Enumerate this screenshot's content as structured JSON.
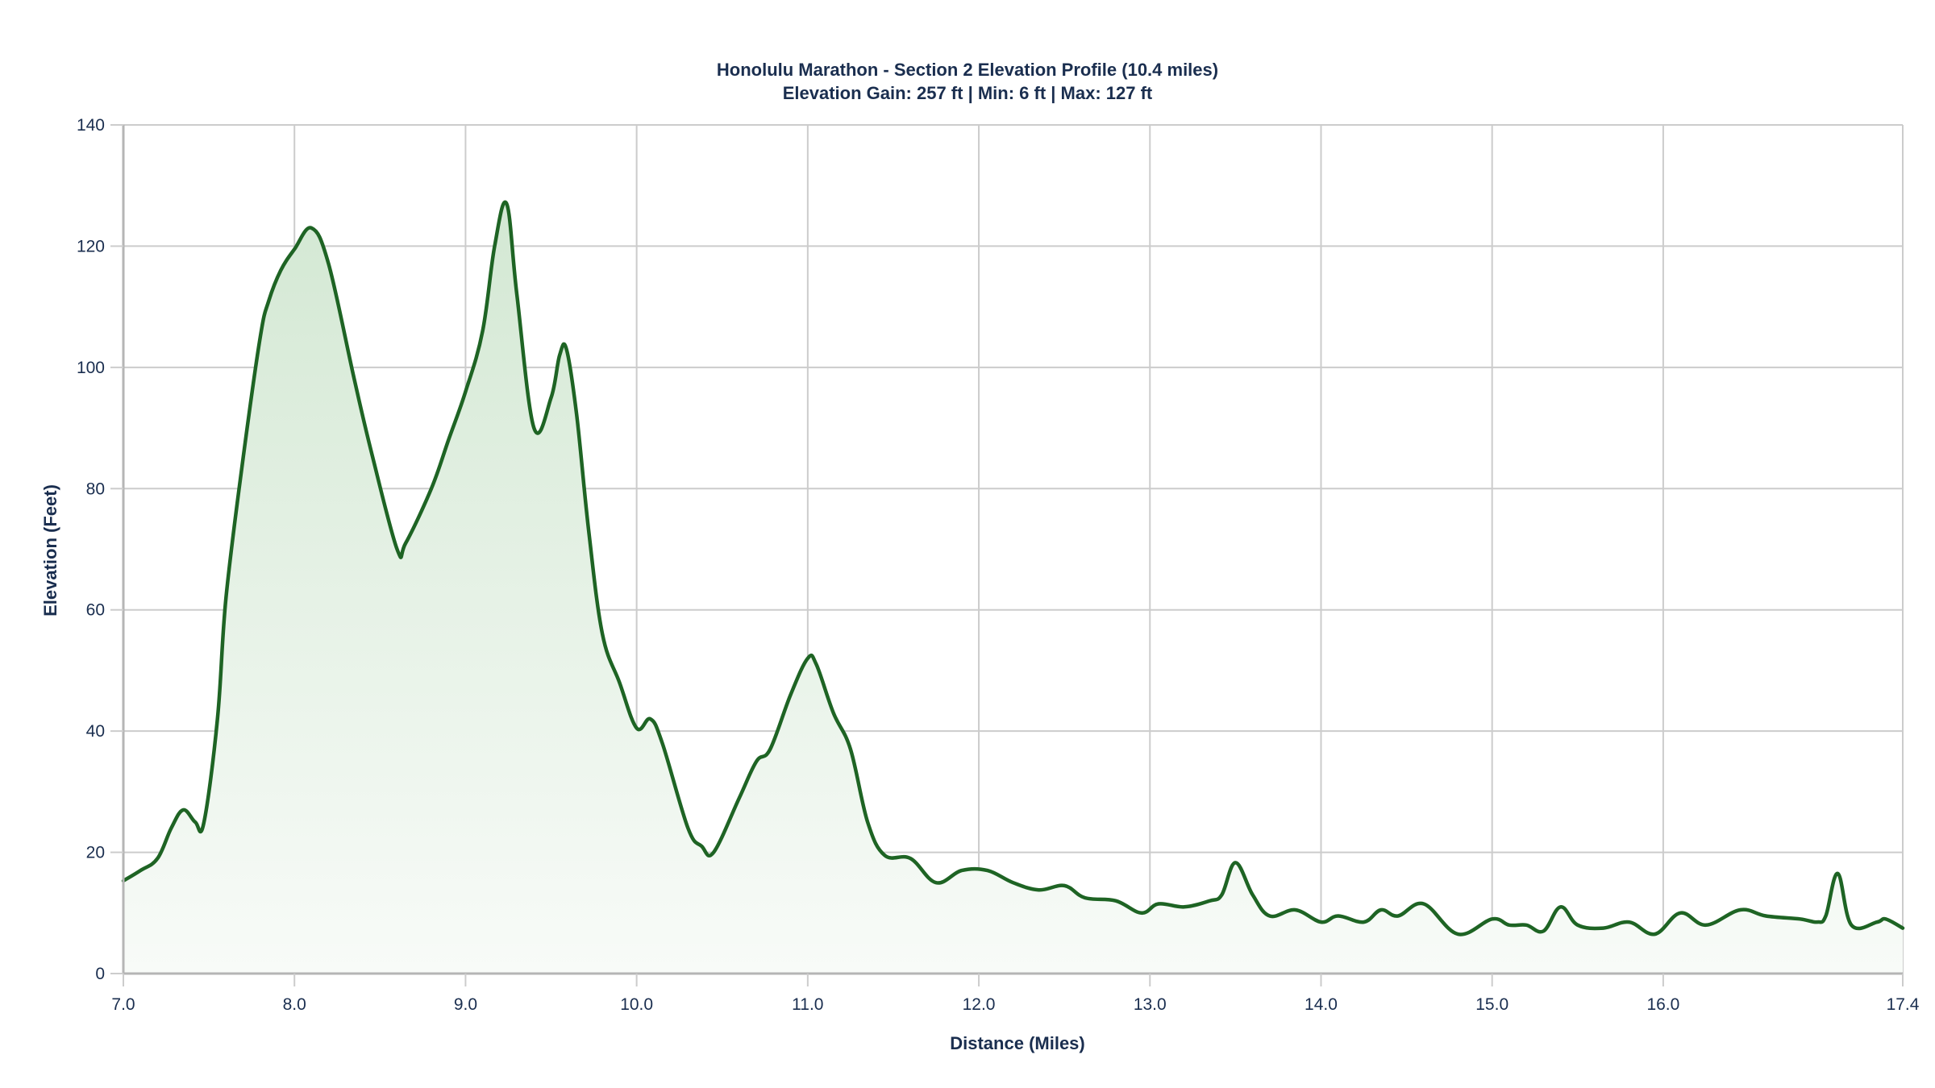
{
  "chart": {
    "title": "Honolulu Marathon - Section 2 Elevation Profile (10.4 miles)",
    "subtitle": "Elevation Gain: 257 ft | Min: 6 ft | Max: 127 ft"
  },
  "colors": {
    "line": "#1e6424",
    "fill_top": "#d3e8d3",
    "fill_bottom": "#f8fbf8",
    "grid": "#cccccc",
    "axis": "#b5b5b5",
    "text": "#1a2e4f"
  },
  "chart_data": {
    "type": "area",
    "title": "Honolulu Marathon - Section 2 Elevation Profile (10.4 miles)",
    "subtitle": "Elevation Gain: 257 ft | Min: 6 ft | Max: 127 ft",
    "xlabel": "Distance (Miles)",
    "ylabel": "Elevation (Feet)",
    "xlim": [
      7.0,
      17.4
    ],
    "ylim": [
      0,
      140
    ],
    "x_ticks": [
      "7.0",
      "8.0",
      "9.0",
      "10.0",
      "11.0",
      "12.0",
      "13.0",
      "14.0",
      "15.0",
      "16.0",
      "17.4"
    ],
    "x_tick_values": [
      7.0,
      8.0,
      9.0,
      10.0,
      11.0,
      12.0,
      13.0,
      14.0,
      15.0,
      16.0,
      17.4
    ],
    "y_ticks": [
      "0",
      "20",
      "40",
      "60",
      "80",
      "100",
      "120",
      "140"
    ],
    "y_tick_values": [
      0,
      20,
      40,
      60,
      80,
      100,
      120,
      140
    ],
    "grid": true,
    "legend": null,
    "x": [
      7.0,
      7.1,
      7.2,
      7.28,
      7.35,
      7.42,
      7.47,
      7.55,
      7.6,
      7.7,
      7.8,
      7.85,
      7.92,
      8.0,
      8.1,
      8.2,
      8.35,
      8.45,
      8.6,
      8.65,
      8.8,
      8.9,
      9.0,
      9.1,
      9.17,
      9.24,
      9.3,
      9.4,
      9.5,
      9.55,
      9.59,
      9.65,
      9.72,
      9.8,
      9.9,
      10.0,
      10.08,
      10.15,
      10.3,
      10.38,
      10.45,
      10.6,
      10.7,
      10.78,
      10.9,
      11.0,
      11.05,
      11.15,
      11.25,
      11.35,
      11.45,
      11.6,
      11.75,
      11.9,
      12.05,
      12.2,
      12.35,
      12.5,
      12.62,
      12.8,
      12.95,
      13.05,
      13.2,
      13.35,
      13.42,
      13.5,
      13.6,
      13.7,
      13.85,
      14.0,
      14.1,
      14.25,
      14.35,
      14.45,
      14.6,
      14.8,
      15.0,
      15.1,
      15.2,
      15.3,
      15.4,
      15.5,
      15.65,
      15.8,
      15.95,
      16.1,
      16.25,
      16.45,
      16.6,
      16.8,
      16.9,
      16.95,
      17.02,
      17.1,
      17.25,
      17.3,
      17.4
    ],
    "values": [
      15.3,
      17,
      19,
      24,
      27,
      25,
      24.8,
      42,
      62,
      85,
      105,
      111,
      116,
      119.5,
      123,
      117,
      98,
      86,
      70,
      71,
      80,
      88,
      96,
      106,
      120,
      127,
      112,
      90,
      95,
      102,
      103,
      92,
      73,
      56,
      48,
      40.5,
      42,
      38,
      24,
      21,
      20,
      29,
      35,
      37,
      46,
      52,
      51,
      43,
      37,
      25,
      19.5,
      19,
      15,
      17,
      17,
      15,
      13.8,
      14.5,
      12.5,
      12,
      10,
      11.5,
      11,
      12,
      13,
      18.3,
      13,
      9.5,
      10.5,
      8.5,
      9.5,
      8.5,
      10.5,
      9.5,
      11.5,
      6.5,
      9,
      8,
      8,
      7,
      11,
      8,
      7.5,
      8.5,
      6.5,
      10,
      8,
      10.5,
      9.5,
      9,
      8.5,
      9.5,
      16.5,
      8,
      8.5,
      9,
      7.5
    ]
  }
}
